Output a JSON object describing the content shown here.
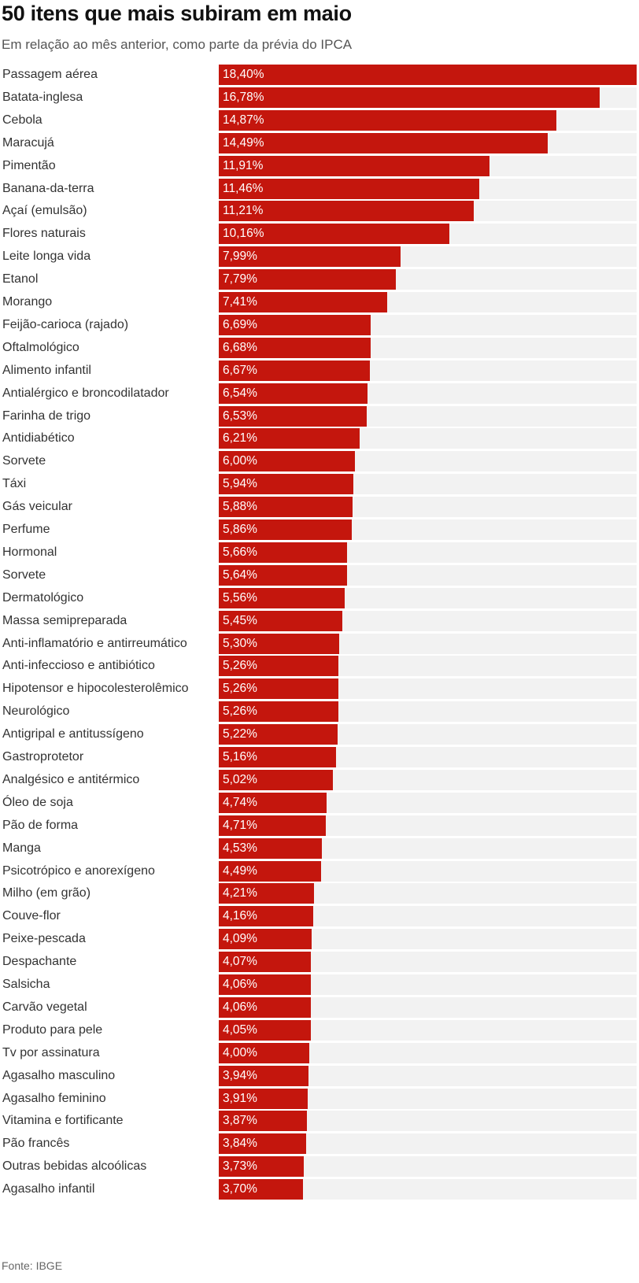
{
  "title": "50 itens que mais subiram em maio",
  "subtitle": "Em relação ao mês anterior, como parte da prévia do IPCA",
  "source": "Fonte: IBGE",
  "colors": {
    "bar": "#c4160d",
    "track": "#f2f2f2",
    "text": "#333333"
  },
  "chart_data": {
    "type": "bar",
    "orientation": "horizontal",
    "title": "50 itens que mais subiram em maio",
    "subtitle": "Em relação ao mês anterior, como parte da prévia do IPCA",
    "xlim": [
      0,
      18.4
    ],
    "grid": false,
    "legend": "none",
    "categories": [
      "Passagem aérea",
      "Batata-inglesa",
      "Cebola",
      "Maracujá",
      "Pimentão",
      "Banana-da-terra",
      "Açaí (emulsão)",
      "Flores naturais",
      "Leite longa vida",
      "Etanol",
      "Morango",
      "Feijão-carioca (rajado)",
      "Oftalmológico",
      "Alimento infantil",
      "Antialérgico e broncodilatador",
      "Farinha de trigo",
      "Antidiabético",
      "Sorvete",
      "Táxi",
      "Gás veicular",
      "Perfume",
      "Hormonal",
      "Sorvete",
      "Dermatológico",
      "Massa semipreparada",
      "Anti-inflamatório e antirreumático",
      "Anti-infeccioso e antibiótico",
      "Hipotensor e hipocolesterolêmico",
      "Neurológico",
      "Antigripal e antitussígeno",
      "Gastroprotetor",
      "Analgésico e antitérmico",
      "Óleo de soja",
      "Pão de forma",
      "Manga",
      "Psicotrópico e anorexígeno",
      "Milho (em grão)",
      "Couve-flor",
      "Peixe-pescada",
      "Despachante",
      "Salsicha",
      "Carvão vegetal",
      "Produto para pele",
      "Tv por assinatura",
      "Agasalho masculino",
      "Agasalho feminino",
      "Vitamina e fortificante",
      "Pão francês",
      "Outras bebidas alcoólicas",
      "Agasalho infantil"
    ],
    "values": [
      18.4,
      16.78,
      14.87,
      14.49,
      11.91,
      11.46,
      11.21,
      10.16,
      7.99,
      7.79,
      7.41,
      6.69,
      6.68,
      6.67,
      6.54,
      6.53,
      6.21,
      6.0,
      5.94,
      5.88,
      5.86,
      5.66,
      5.64,
      5.56,
      5.45,
      5.3,
      5.26,
      5.26,
      5.26,
      5.22,
      5.16,
      5.02,
      4.74,
      4.71,
      4.53,
      4.49,
      4.21,
      4.16,
      4.09,
      4.07,
      4.06,
      4.06,
      4.05,
      4.0,
      3.94,
      3.91,
      3.87,
      3.84,
      3.73,
      3.7
    ],
    "value_labels": [
      "18,40%",
      "16,78%",
      "14,87%",
      "14,49%",
      "11,91%",
      "11,46%",
      "11,21%",
      "10,16%",
      "7,99%",
      "7,79%",
      "7,41%",
      "6,69%",
      "6,68%",
      "6,67%",
      "6,54%",
      "6,53%",
      "6,21%",
      "6,00%",
      "5,94%",
      "5,88%",
      "5,86%",
      "5,66%",
      "5,64%",
      "5,56%",
      "5,45%",
      "5,30%",
      "5,26%",
      "5,26%",
      "5,26%",
      "5,22%",
      "5,16%",
      "5,02%",
      "4,74%",
      "4,71%",
      "4,53%",
      "4,49%",
      "4,21%",
      "4,16%",
      "4,09%",
      "4,07%",
      "4,06%",
      "4,06%",
      "4,05%",
      "4,00%",
      "3,94%",
      "3,91%",
      "3,87%",
      "3,84%",
      "3,73%",
      "3,70%"
    ]
  }
}
